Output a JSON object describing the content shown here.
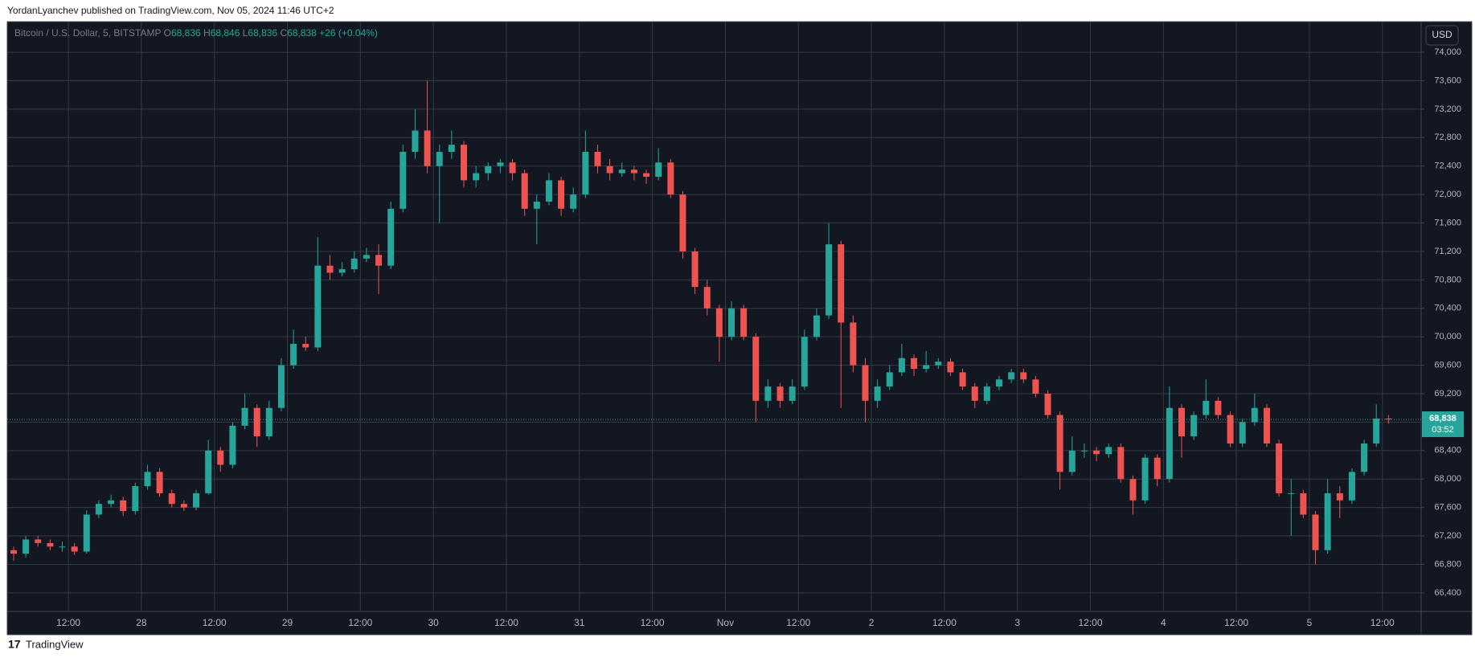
{
  "header": {
    "text": "YordanLyanchev published on TradingView.com, Nov 05, 2024 11:46 UTC+2"
  },
  "chart_data": {
    "type": "candlestick",
    "symbol": "Bitcoin / U.S. Dollar, 5, BITSTAMP",
    "legend": {
      "o_label": "O",
      "open": "68,836",
      "h_label": "H",
      "high": "68,846",
      "l_label": "L",
      "low": "68,836",
      "c_label": "C",
      "close": "68,838",
      "change": "+26 (+0.04%)"
    },
    "currency": "USD",
    "last_price": {
      "value": 68838,
      "label": "68,838"
    },
    "countdown": "03:52",
    "x_labels": [
      "12:00",
      "28",
      "12:00",
      "29",
      "12:00",
      "30",
      "12:00",
      "31",
      "12:00",
      "Nov",
      "12:00",
      "2",
      "12:00",
      "3",
      "12:00",
      "4",
      "12:00",
      "5",
      "12:00"
    ],
    "candles": [
      [
        67000,
        67050,
        66850,
        66950
      ],
      [
        66950,
        67200,
        66900,
        67150
      ],
      [
        67150,
        67200,
        67050,
        67100
      ],
      [
        67100,
        67150,
        67000,
        67050
      ],
      [
        67050,
        67120,
        66980,
        67050
      ],
      [
        67050,
        67100,
        66930,
        66980
      ],
      [
        66980,
        67560,
        66950,
        67500
      ],
      [
        67500,
        67700,
        67450,
        67650
      ],
      [
        67650,
        67780,
        67600,
        67700
      ],
      [
        67700,
        67750,
        67480,
        67550
      ],
      [
        67550,
        67950,
        67500,
        67900
      ],
      [
        67900,
        68200,
        67850,
        68100
      ],
      [
        68100,
        68150,
        67750,
        67800
      ],
      [
        67800,
        67850,
        67600,
        67650
      ],
      [
        67650,
        67700,
        67550,
        67600
      ],
      [
        67600,
        67850,
        67560,
        67800
      ],
      [
        67800,
        68550,
        67780,
        68400
      ],
      [
        68400,
        68450,
        68100,
        68200
      ],
      [
        68200,
        68800,
        68150,
        68750
      ],
      [
        68750,
        69200,
        68700,
        69000
      ],
      [
        69000,
        69050,
        68450,
        68600
      ],
      [
        68600,
        69100,
        68550,
        69000
      ],
      [
        69000,
        69700,
        68950,
        69600
      ],
      [
        69600,
        70100,
        69550,
        69900
      ],
      [
        69900,
        70000,
        69800,
        69850
      ],
      [
        69850,
        71400,
        69800,
        71000
      ],
      [
        71000,
        71150,
        70800,
        70900
      ],
      [
        70900,
        71050,
        70850,
        70950
      ],
      [
        70950,
        71200,
        70900,
        71100
      ],
      [
        71100,
        71250,
        71050,
        71150
      ],
      [
        71150,
        71300,
        70600,
        71000
      ],
      [
        71000,
        71900,
        70950,
        71800
      ],
      [
        71800,
        72700,
        71750,
        72600
      ],
      [
        72600,
        73200,
        72500,
        72900
      ],
      [
        72900,
        73600,
        72300,
        72400
      ],
      [
        72400,
        72700,
        71600,
        72600
      ],
      [
        72600,
        72900,
        72500,
        72700
      ],
      [
        72700,
        72750,
        72100,
        72200
      ],
      [
        72200,
        72400,
        72100,
        72300
      ],
      [
        72300,
        72450,
        72200,
        72400
      ],
      [
        72400,
        72500,
        72300,
        72450
      ],
      [
        72450,
        72500,
        72200,
        72300
      ],
      [
        72300,
        72350,
        71700,
        71800
      ],
      [
        71800,
        72000,
        71300,
        71900
      ],
      [
        71900,
        72300,
        71850,
        72200
      ],
      [
        72200,
        72250,
        71700,
        71800
      ],
      [
        71800,
        72100,
        71750,
        72000
      ],
      [
        72000,
        72900,
        71950,
        72600
      ],
      [
        72600,
        72700,
        72300,
        72400
      ],
      [
        72400,
        72500,
        72200,
        72300
      ],
      [
        72300,
        72450,
        72250,
        72350
      ],
      [
        72350,
        72400,
        72200,
        72300
      ],
      [
        72300,
        72350,
        72150,
        72250
      ],
      [
        72250,
        72650,
        72200,
        72450
      ],
      [
        72450,
        72500,
        71950,
        72000
      ],
      [
        72000,
        72050,
        71100,
        71200
      ],
      [
        71200,
        71250,
        70600,
        70700
      ],
      [
        70700,
        70800,
        70300,
        70400
      ],
      [
        70400,
        70450,
        69650,
        70000
      ],
      [
        70000,
        70500,
        69950,
        70400
      ],
      [
        70400,
        70450,
        69950,
        70000
      ],
      [
        70000,
        70050,
        68800,
        69100
      ],
      [
        69100,
        69400,
        69000,
        69300
      ],
      [
        69300,
        69350,
        69000,
        69100
      ],
      [
        69100,
        69400,
        69050,
        69300
      ],
      [
        69300,
        70100,
        69250,
        70000
      ],
      [
        70000,
        70400,
        69950,
        70300
      ],
      [
        70300,
        71600,
        70250,
        71300
      ],
      [
        71300,
        71350,
        69000,
        70200
      ],
      [
        70200,
        70300,
        69500,
        69600
      ],
      [
        69600,
        69700,
        68800,
        69100
      ],
      [
        69100,
        69400,
        69000,
        69300
      ],
      [
        69300,
        69600,
        69250,
        69500
      ],
      [
        69500,
        69900,
        69450,
        69700
      ],
      [
        69700,
        69750,
        69450,
        69550
      ],
      [
        69550,
        69800,
        69500,
        69600
      ],
      [
        69600,
        69700,
        69550,
        69650
      ],
      [
        69650,
        69700,
        69450,
        69500
      ],
      [
        69500,
        69550,
        69250,
        69300
      ],
      [
        69300,
        69350,
        69000,
        69100
      ],
      [
        69100,
        69350,
        69050,
        69300
      ],
      [
        69300,
        69450,
        69250,
        69400
      ],
      [
        69400,
        69550,
        69350,
        69500
      ],
      [
        69500,
        69550,
        69350,
        69400
      ],
      [
        69400,
        69450,
        69150,
        69200
      ],
      [
        69200,
        69250,
        68850,
        68900
      ],
      [
        68900,
        68950,
        67850,
        68100
      ],
      [
        68100,
        68600,
        68050,
        68400
      ],
      [
        68400,
        68500,
        68300,
        68400
      ],
      [
        68400,
        68450,
        68250,
        68350
      ],
      [
        68350,
        68500,
        68300,
        68450
      ],
      [
        68450,
        68500,
        67950,
        68000
      ],
      [
        68000,
        68050,
        67500,
        67700
      ],
      [
        67700,
        68350,
        67650,
        68300
      ],
      [
        68300,
        68350,
        67900,
        68000
      ],
      [
        68000,
        69300,
        67950,
        69000
      ],
      [
        69000,
        69050,
        68300,
        68600
      ],
      [
        68600,
        68950,
        68550,
        68900
      ],
      [
        68900,
        69400,
        68850,
        69100
      ],
      [
        69100,
        69150,
        68850,
        68900
      ],
      [
        68900,
        68950,
        68450,
        68500
      ],
      [
        68500,
        68850,
        68450,
        68800
      ],
      [
        68800,
        69200,
        68750,
        69000
      ],
      [
        69000,
        69050,
        68450,
        68500
      ],
      [
        68500,
        68550,
        67750,
        67800
      ],
      [
        67800,
        68000,
        67200,
        67800
      ],
      [
        67800,
        67850,
        67450,
        67500
      ],
      [
        67500,
        67550,
        66800,
        67000
      ],
      [
        67000,
        68000,
        66950,
        67800
      ],
      [
        67800,
        67900,
        67450,
        67700
      ],
      [
        67700,
        68150,
        67650,
        68100
      ],
      [
        68100,
        68550,
        68050,
        68500
      ],
      [
        68500,
        69050,
        68450,
        68850
      ],
      [
        68850,
        68900,
        68780,
        68838
      ]
    ],
    "up_color": "#26a69a",
    "down_color": "#ef5350",
    "ylim": [
      66150,
      74430
    ],
    "yticks": [
      {
        "value": 66400,
        "label": "66,400"
      },
      {
        "value": 66800,
        "label": "66,800"
      },
      {
        "value": 67200,
        "label": "67,200"
      },
      {
        "value": 67600,
        "label": "67,600"
      },
      {
        "value": 68000,
        "label": "68,000"
      },
      {
        "value": 68400,
        "label": "68,400"
      },
      {
        "value": 68800,
        "label": "68,800"
      },
      {
        "value": 69200,
        "label": "69,200"
      },
      {
        "value": 69600,
        "label": "69,600"
      },
      {
        "value": 70000,
        "label": "70,000"
      },
      {
        "value": 70400,
        "label": "70,400"
      },
      {
        "value": 70800,
        "label": "70,800"
      },
      {
        "value": 71200,
        "label": "71,200"
      },
      {
        "value": 71600,
        "label": "71,600"
      },
      {
        "value": 72000,
        "label": "72,000"
      },
      {
        "value": 72400,
        "label": "72,400"
      },
      {
        "value": 72800,
        "label": "72,800"
      },
      {
        "value": 73200,
        "label": "73,200"
      },
      {
        "value": 73600,
        "label": "73,600"
      },
      {
        "value": 74000,
        "label": "74,000"
      }
    ],
    "grid": true
  },
  "footer": {
    "brand": "TradingView"
  }
}
